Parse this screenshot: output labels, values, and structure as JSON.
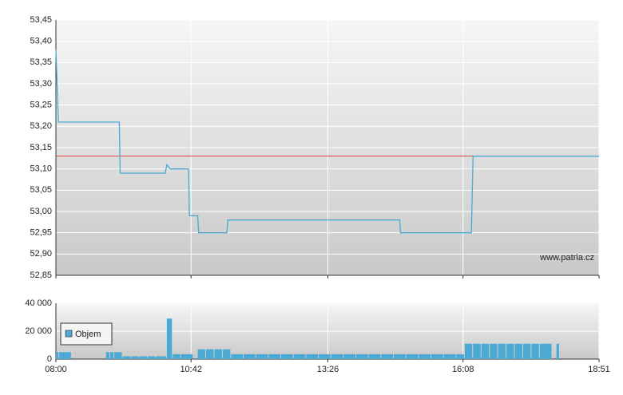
{
  "chart_data": [
    {
      "type": "line",
      "xlim": [
        "08:00",
        "18:51"
      ],
      "xticks": [
        "08:00",
        "10:42",
        "13:26",
        "16:08",
        "18:51"
      ],
      "ylim": [
        52.85,
        53.45
      ],
      "yticks": [
        {
          "value": 52.85,
          "label": "52,85"
        },
        {
          "value": 52.9,
          "label": "52,90"
        },
        {
          "value": 52.95,
          "label": "52,95"
        },
        {
          "value": 53.0,
          "label": "53,00"
        },
        {
          "value": 53.05,
          "label": "53,05"
        },
        {
          "value": 53.1,
          "label": "53,10"
        },
        {
          "value": 53.15,
          "label": "53,15"
        },
        {
          "value": 53.2,
          "label": "53,20"
        },
        {
          "value": 53.25,
          "label": "53,25"
        },
        {
          "value": 53.3,
          "label": "53,30"
        },
        {
          "value": 53.35,
          "label": "53,35"
        },
        {
          "value": 53.4,
          "label": "53,40"
        },
        {
          "value": 53.45,
          "label": "53,45"
        }
      ],
      "grid": true,
      "reference_line": {
        "value": 53.13,
        "color": "#e04040"
      },
      "watermark": "www.patria.cz",
      "series": [
        {
          "color": "#4aaad4",
          "x": [
            "08:00",
            "08:03",
            "09:16",
            "09:17",
            "10:11",
            "10:13",
            "10:17",
            "10:39",
            "10:40",
            "10:50",
            "10:51",
            "11:25",
            "11:26",
            "14:52",
            "14:53",
            "16:18",
            "16:20",
            "18:51"
          ],
          "values": [
            53.38,
            53.21,
            53.21,
            53.09,
            53.09,
            53.11,
            53.1,
            53.1,
            52.99,
            52.99,
            52.95,
            52.95,
            52.98,
            52.98,
            52.95,
            52.95,
            53.13,
            53.13
          ]
        }
      ]
    },
    {
      "type": "bar",
      "xlim": [
        "08:00",
        "18:51"
      ],
      "xticks": [
        "08:00",
        "10:42",
        "13:26",
        "16:08",
        "18:51"
      ],
      "ylim": [
        0,
        40000
      ],
      "yticks": [
        0,
        {
          "value": 20000,
          "label": "20 000"
        },
        {
          "value": 40000,
          "label": "40 000"
        }
      ],
      "grid": true,
      "legend": "upper left",
      "series": [
        {
          "name": "Objem",
          "color": "#4aaad4",
          "x": [
            "08:00",
            "08:04",
            "09:00",
            "09:05",
            "09:10",
            "09:20",
            "09:30",
            "09:40",
            "09:50",
            "10:00",
            "10:13",
            "10:20",
            "10:30",
            "10:50",
            "11:00",
            "11:10",
            "11:20",
            "11:30",
            "11:45",
            "12:00",
            "12:15",
            "12:30",
            "12:45",
            "13:00",
            "13:15",
            "13:30",
            "13:45",
            "14:00",
            "14:15",
            "14:30",
            "14:45",
            "15:00",
            "15:15",
            "15:30",
            "15:45",
            "16:00",
            "16:10",
            "16:20",
            "16:30",
            "16:40",
            "16:50",
            "17:00",
            "17:10",
            "17:20",
            "17:30",
            "17:40",
            "18:00"
          ],
          "values": [
            5000,
            5000,
            5000,
            5000,
            5000,
            2000,
            2000,
            2000,
            2000,
            2000,
            29000,
            3500,
            3500,
            7000,
            7000,
            7000,
            7000,
            3500,
            3500,
            3500,
            3500,
            3500,
            3500,
            3500,
            3500,
            3500,
            3500,
            3500,
            3500,
            3500,
            3500,
            3500,
            3500,
            3500,
            3500,
            3500,
            11000,
            11000,
            11000,
            11000,
            11000,
            11000,
            11000,
            11000,
            11000,
            11000,
            11000
          ]
        }
      ]
    }
  ]
}
